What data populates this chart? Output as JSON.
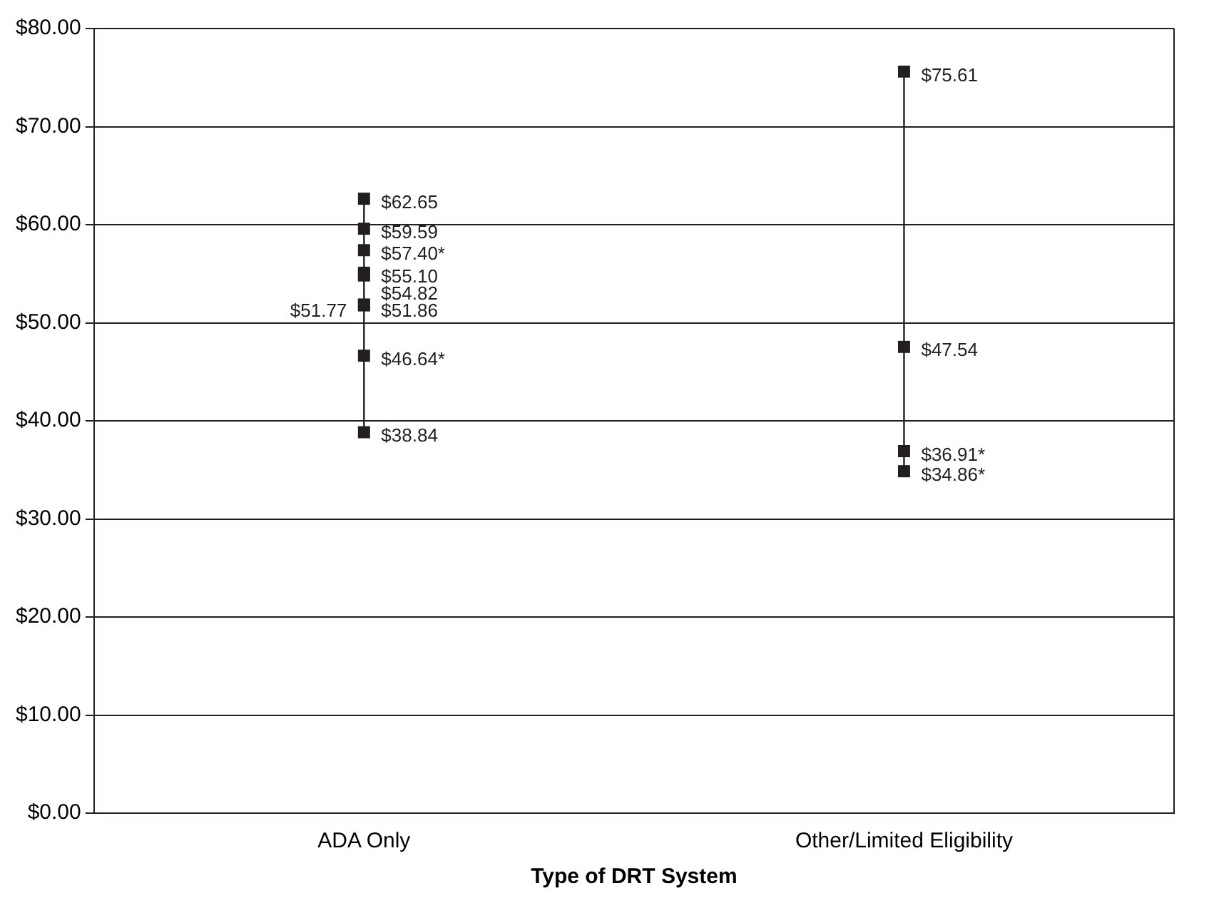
{
  "chart_data": {
    "type": "line",
    "xlabel": "Type of DRT System",
    "categories": [
      "ADA Only",
      "Other/Limited Eligibility"
    ],
    "series": [
      {
        "color": "#231f20",
        "x": [
          "ADA Only",
          "ADA Only",
          "ADA Only",
          "ADA Only",
          "ADA Only",
          "ADA Only",
          "ADA Only",
          "ADA Only",
          "ADA Only"
        ],
        "values": [
          62.65,
          59.59,
          57.4,
          55.1,
          54.82,
          51.86,
          51.77,
          46.64,
          38.84
        ],
        "value_labels": [
          "$62.65",
          "$59.59",
          "$57.40*",
          "$55.10",
          "$54.82",
          "$51.86",
          "$51.77",
          "$46.64*",
          "$38.84"
        ]
      },
      {
        "color": "#231f20",
        "x": [
          "Other/Limited Eligibility",
          "Other/Limited Eligibility",
          "Other/Limited Eligibility",
          "Other/Limited Eligibility"
        ],
        "values": [
          75.61,
          47.54,
          36.91,
          34.86
        ],
        "value_labels": [
          "$75.61",
          "$47.54",
          "$36.91*",
          "$34.86*"
        ]
      }
    ],
    "ylim": [
      0,
      80
    ],
    "yticks": [
      {
        "value": 0,
        "label": "$0.00"
      },
      {
        "value": 10,
        "label": "$10.00"
      },
      {
        "value": 20,
        "label": "$20.00"
      },
      {
        "value": 30,
        "label": "$30.00"
      },
      {
        "value": 40,
        "label": "$40.00"
      },
      {
        "value": 50,
        "label": "$50.00"
      },
      {
        "value": 60,
        "label": "$60.00"
      },
      {
        "value": 70,
        "label": "$70.00"
      },
      {
        "value": 80,
        "label": "$80.00"
      }
    ],
    "grid": "y",
    "legend": false,
    "marker": "square",
    "line_style": "solid"
  }
}
